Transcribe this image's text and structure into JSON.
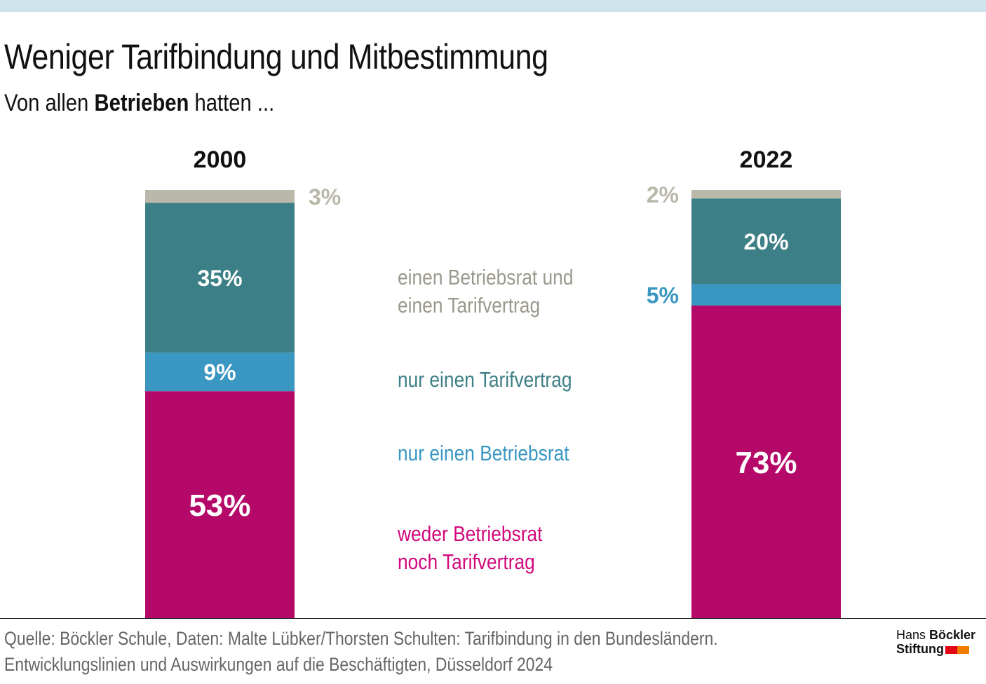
{
  "chart_data": {
    "type": "bar",
    "stacked": true,
    "title": "Weniger Tarifbindung und Mitbestimmung",
    "subtitle": {
      "pre": "Von allen ",
      "bold": "Betrieben",
      "post": " hatten ..."
    },
    "categories": [
      "2000",
      "2022"
    ],
    "series": [
      {
        "name": "weder Betriebsrat noch Tarifvertrag",
        "values": [
          53,
          73
        ],
        "labels": [
          "53%",
          "73%"
        ],
        "color": "#b5096a"
      },
      {
        "name": "nur einen Betriebsrat",
        "values": [
          9,
          5
        ],
        "labels": [
          "9%",
          "5%"
        ],
        "color": "#3a97c1"
      },
      {
        "name": "nur einen Tarifvertrag",
        "values": [
          35,
          20
        ],
        "labels": [
          "35%",
          "20%"
        ],
        "color": "#3d7f86"
      },
      {
        "name": "einen Betriebsrat und einen Tarifvertrag",
        "values": [
          3,
          2
        ],
        "labels": [
          "3%",
          "2%"
        ],
        "color": "#bab8aa"
      }
    ],
    "ylim": [
      0,
      100
    ],
    "grid": false
  },
  "legend": [
    {
      "lines": [
        "einen Betriebsrat und",
        "einen Tarifvertrag"
      ],
      "color": "#9b998d"
    },
    {
      "lines": [
        "nur einen Tarifvertrag"
      ],
      "color": "#3d7f86"
    },
    {
      "lines": [
        "nur einen Betriebsrat"
      ],
      "color": "#3a97c1"
    },
    {
      "lines": [
        "weder Betriebsrat",
        "noch Tarifvertrag"
      ],
      "color": "#d3087c"
    }
  ],
  "source": [
    "Quelle: Böckler Schule, Daten: Malte Lübker/Thorsten Schulten: Tarifbindung in den Bundesländern.",
    "Entwicklungslinien und Auswirkungen auf die Beschäftigten, Düsseldorf 2024"
  ],
  "logo": {
    "line1a": "Hans ",
    "line1b": "Böckler",
    "line2": "Stiftung",
    "colors": [
      "#e30613",
      "#f07d00"
    ]
  }
}
